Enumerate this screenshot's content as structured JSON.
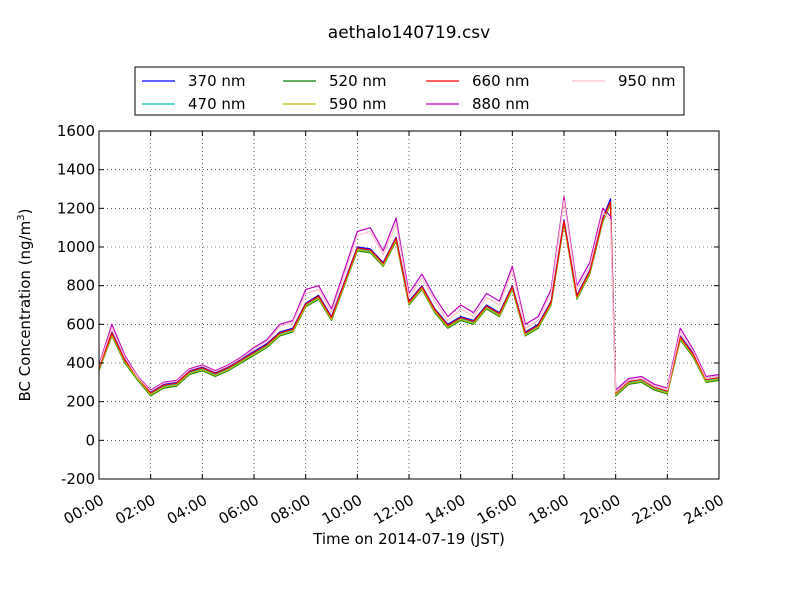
{
  "chart_data": {
    "type": "line",
    "title": "aethalo140719.csv",
    "xlabel": "Time on 2014-07-19 (JST)",
    "ylabel_main": "BC Concentration (ng/m",
    "ylabel_sup": "3",
    "ylabel_end": ")",
    "xlim": [
      0,
      24
    ],
    "ylim": [
      -200,
      1600
    ],
    "x_tick_values": [
      0,
      2,
      4,
      6,
      8,
      10,
      12,
      14,
      16,
      18,
      20,
      22,
      24
    ],
    "x_tick_labels": [
      "00:00",
      "02:00",
      "04:00",
      "06:00",
      "08:00",
      "10:00",
      "12:00",
      "14:00",
      "16:00",
      "18:00",
      "20:00",
      "22:00",
      "24:00"
    ],
    "y_tick_values": [
      -200,
      0,
      200,
      400,
      600,
      800,
      1000,
      1200,
      1400,
      1600
    ],
    "y_tick_labels": [
      "-200",
      "0",
      "200",
      "400",
      "600",
      "800",
      "1000",
      "1200",
      "1400",
      "1600"
    ],
    "grid": true,
    "legend_position": "top",
    "x": [
      0,
      0.5,
      1,
      1.5,
      2,
      2.5,
      3,
      3.5,
      4,
      4.5,
      5,
      5.5,
      6,
      6.5,
      7,
      7.5,
      8,
      8.5,
      9,
      9.5,
      10,
      10.5,
      11,
      11.5,
      12,
      12.5,
      13,
      13.5,
      14,
      14.5,
      15,
      15.5,
      16,
      16.5,
      17,
      17.5,
      18,
      18.5,
      19,
      19.5,
      19.8,
      20,
      20.5,
      21,
      21.5,
      22,
      22.5,
      23,
      23.5,
      24
    ],
    "series": [
      {
        "name": "370 nm",
        "color": "#0000ff",
        "values": [
          380,
          560,
          420,
          330,
          250,
          290,
          300,
          360,
          380,
          350,
          380,
          420,
          460,
          500,
          560,
          580,
          710,
          750,
          640,
          820,
          1000,
          990,
          920,
          1050,
          720,
          800,
          680,
          600,
          640,
          620,
          700,
          660,
          800,
          560,
          600,
          720,
          1140,
          750,
          880,
          1150,
          1250,
          250,
          310,
          320,
          280,
          260,
          540,
          450,
          320,
          330
        ]
      },
      {
        "name": "470 nm",
        "color": "#00bfbf",
        "values": [
          370,
          550,
          410,
          320,
          240,
          280,
          290,
          350,
          370,
          340,
          370,
          410,
          450,
          490,
          550,
          570,
          700,
          740,
          630,
          810,
          990,
          980,
          910,
          1040,
          710,
          790,
          670,
          590,
          630,
          610,
          690,
          650,
          790,
          550,
          590,
          710,
          1130,
          740,
          870,
          1140,
          1230,
          240,
          300,
          310,
          270,
          250,
          530,
          440,
          310,
          320
        ]
      },
      {
        "name": "520 nm",
        "color": "#008000",
        "values": [
          360,
          540,
          400,
          310,
          230,
          270,
          280,
          340,
          360,
          330,
          360,
          400,
          440,
          480,
          540,
          560,
          690,
          730,
          620,
          800,
          980,
          970,
          900,
          1030,
          700,
          780,
          660,
          580,
          620,
          600,
          680,
          640,
          780,
          540,
          580,
          700,
          1120,
          730,
          860,
          1130,
          1220,
          230,
          290,
          300,
          260,
          240,
          520,
          430,
          300,
          310
        ]
      },
      {
        "name": "590 nm",
        "color": "#bfbf00",
        "values": [
          365,
          545,
          405,
          315,
          235,
          275,
          285,
          345,
          365,
          335,
          365,
          405,
          445,
          485,
          545,
          565,
          695,
          735,
          625,
          805,
          985,
          975,
          905,
          1035,
          705,
          785,
          665,
          585,
          625,
          605,
          685,
          645,
          785,
          545,
          585,
          705,
          1125,
          735,
          865,
          1135,
          1225,
          235,
          295,
          305,
          265,
          245,
          525,
          435,
          305,
          315
        ]
      },
      {
        "name": "660 nm",
        "color": "#ff0000",
        "values": [
          375,
          555,
          415,
          325,
          245,
          285,
          295,
          355,
          375,
          345,
          375,
          415,
          455,
          495,
          555,
          575,
          705,
          745,
          635,
          815,
          995,
          985,
          915,
          1045,
          715,
          795,
          675,
          595,
          635,
          615,
          695,
          655,
          795,
          555,
          595,
          715,
          1135,
          745,
          875,
          1145,
          1235,
          245,
          305,
          315,
          275,
          255,
          535,
          445,
          315,
          325
        ]
      },
      {
        "name": "880 nm",
        "color": "#bf00bf",
        "values": [
          390,
          600,
          440,
          330,
          260,
          300,
          310,
          370,
          390,
          360,
          390,
          430,
          480,
          520,
          600,
          620,
          780,
          800,
          680,
          880,
          1080,
          1100,
          980,
          1150,
          760,
          860,
          740,
          640,
          700,
          660,
          760,
          720,
          900,
          600,
          640,
          780,
          1260,
          800,
          920,
          1200,
          1160,
          260,
          320,
          330,
          290,
          270,
          580,
          470,
          330,
          340
        ]
      },
      {
        "name": "950 nm",
        "color": "#ffc0cb",
        "values": [
          385,
          580,
          430,
          325,
          255,
          295,
          305,
          365,
          385,
          355,
          385,
          425,
          470,
          510,
          590,
          610,
          760,
          780,
          660,
          860,
          1060,
          1080,
          960,
          1120,
          740,
          840,
          720,
          620,
          680,
          640,
          740,
          700,
          880,
          580,
          620,
          760,
          1240,
          780,
          900,
          1180,
          1140,
          250,
          310,
          320,
          280,
          260,
          560,
          460,
          320,
          330
        ]
      }
    ]
  }
}
